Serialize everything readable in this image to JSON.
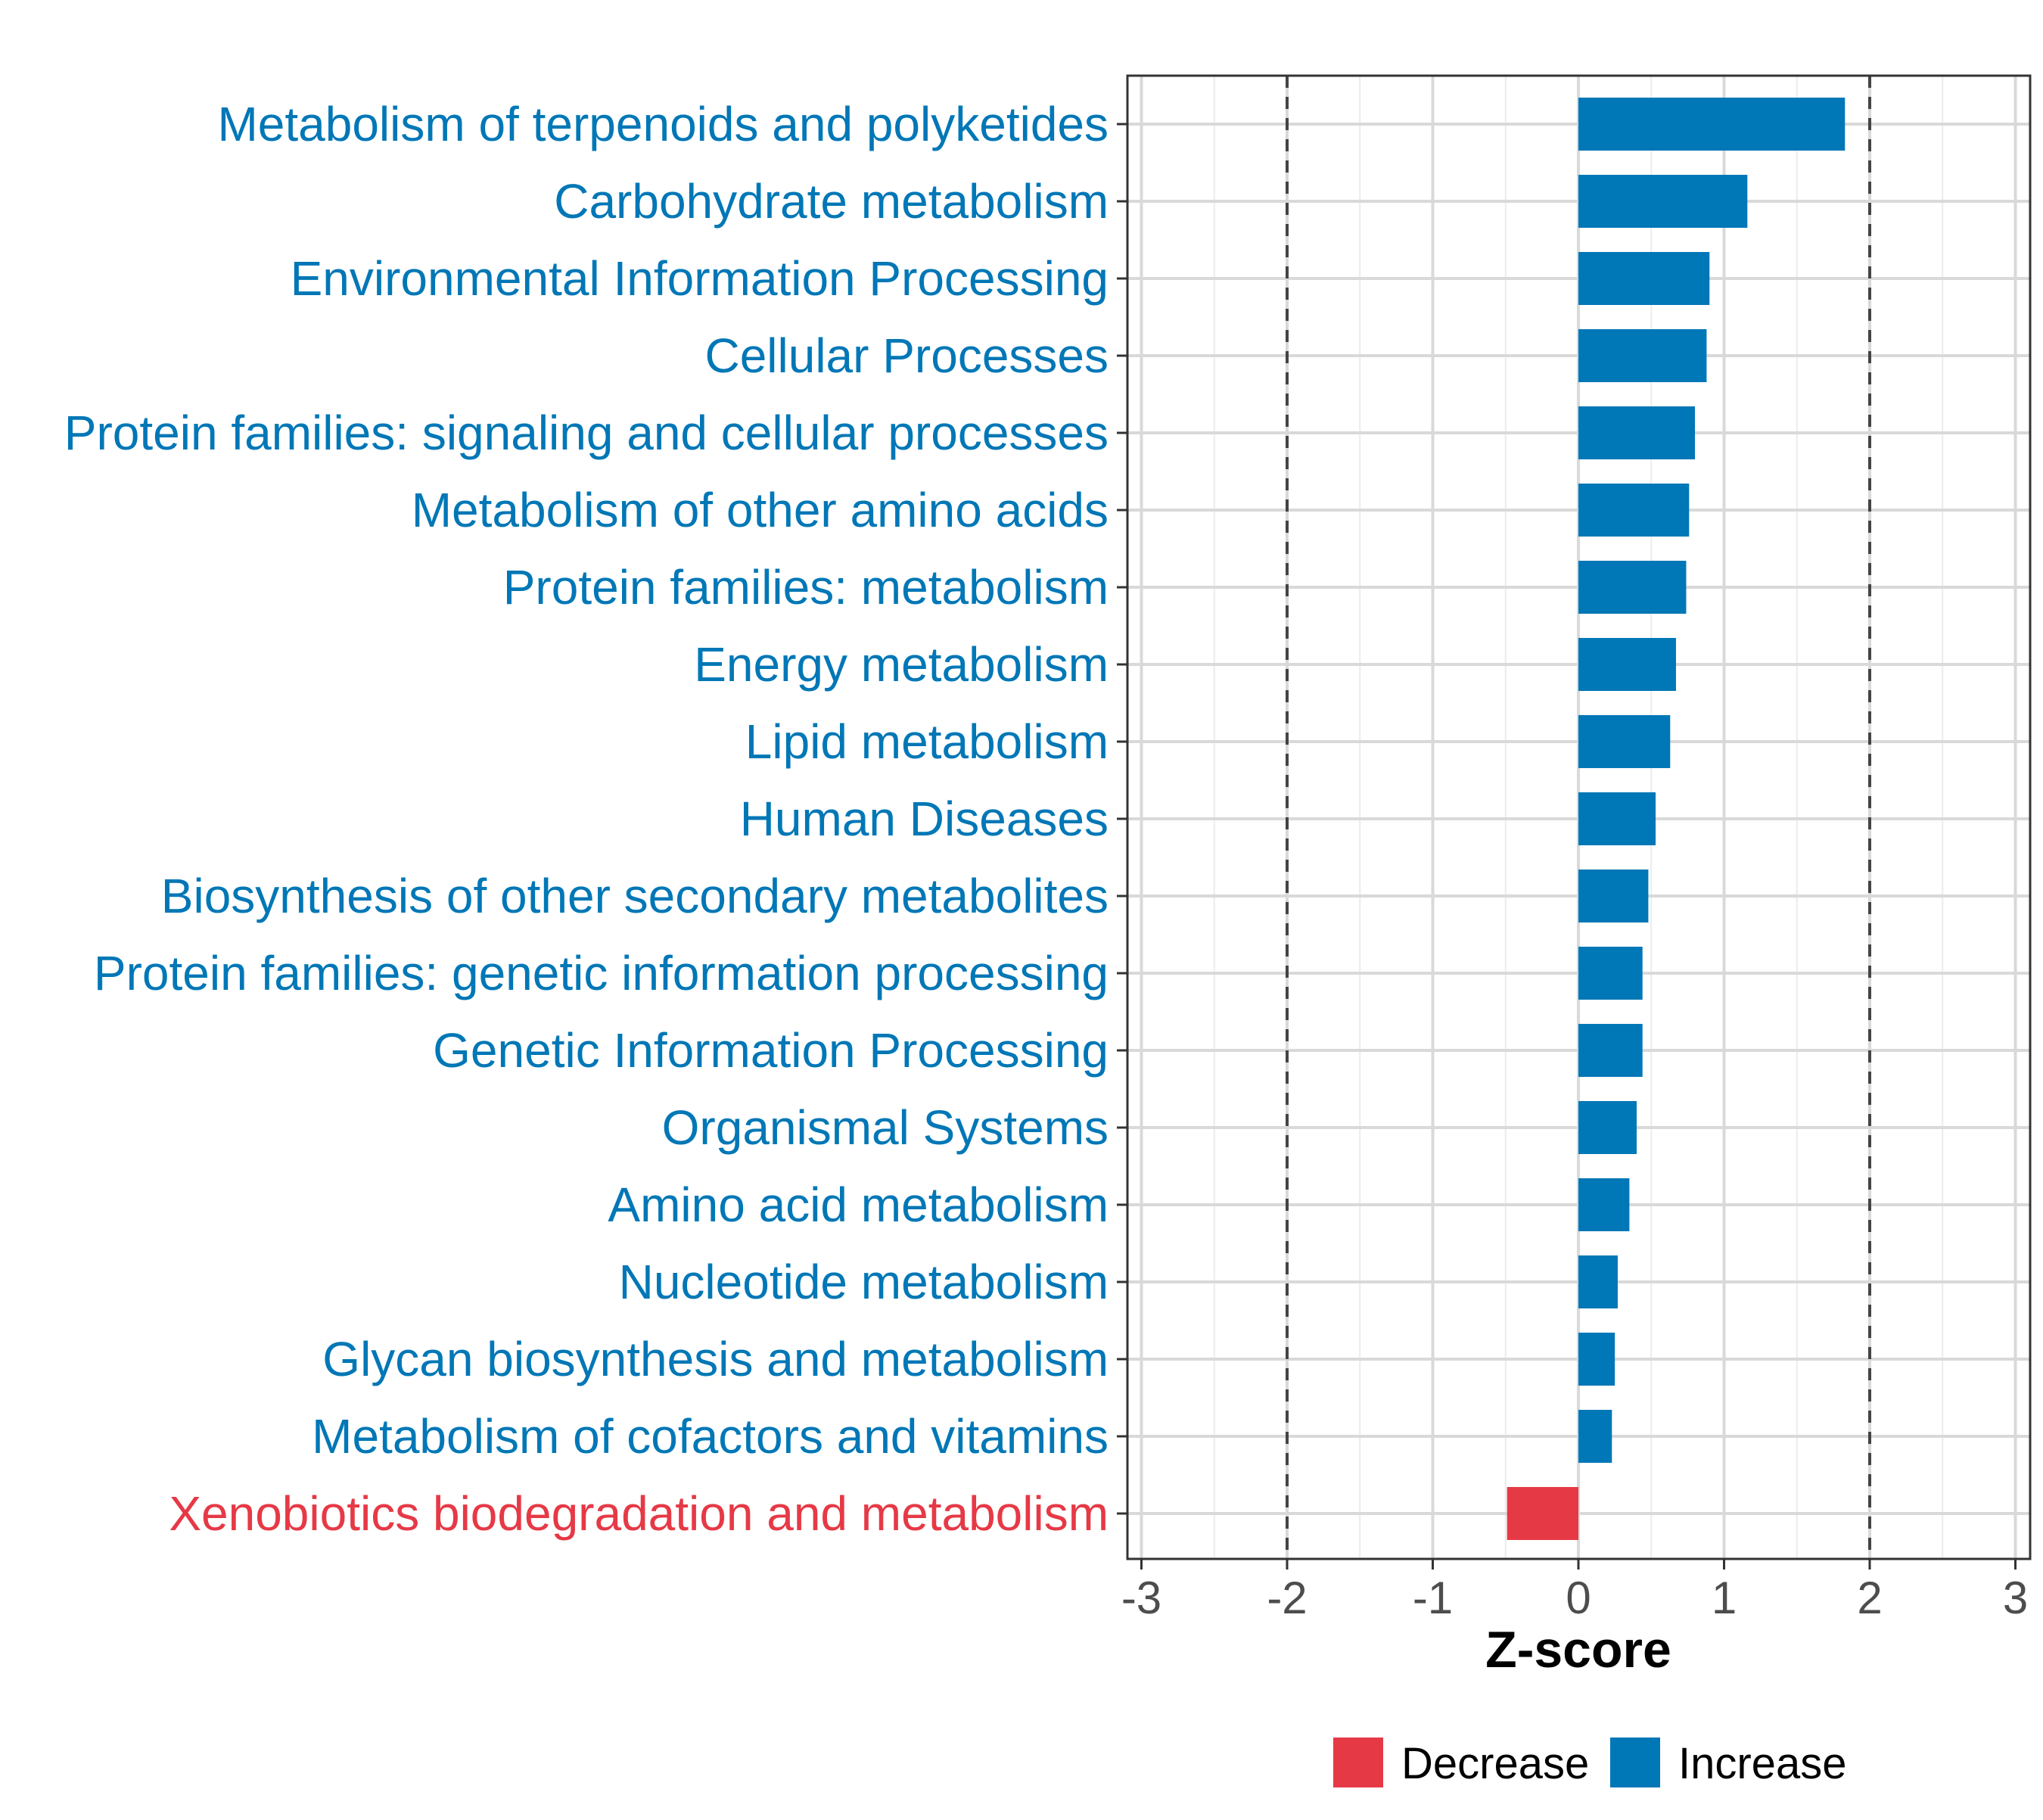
{
  "chart_data": {
    "type": "bar",
    "orientation": "horizontal",
    "title": "",
    "xlabel": "Z-score",
    "ylabel": "",
    "xlim": [
      -3,
      3
    ],
    "xticks": [
      "-3",
      "-2",
      "-1",
      "0",
      "1",
      "2",
      "3"
    ],
    "reference_lines": [
      -2,
      2
    ],
    "grid": true,
    "legend_position": "bottom",
    "legend": [
      {
        "label": "Decrease",
        "color": "#e63946"
      },
      {
        "label": "Increase",
        "color": "#0077b6"
      }
    ],
    "categories": [
      "Metabolism of terpenoids and polyketides",
      "Carbohydrate metabolism",
      "Environmental Information Processing",
      "Cellular Processes",
      "Protein families: signaling and cellular processes",
      "Metabolism of other amino acids",
      "Protein families: metabolism",
      "Energy metabolism",
      "Lipid metabolism",
      "Human Diseases",
      "Biosynthesis of other secondary metabolites",
      "Protein families: genetic information processing",
      "Genetic Information Processing",
      "Organismal Systems",
      "Amino acid metabolism",
      "Nucleotide metabolism",
      "Glycan biosynthesis and metabolism",
      "Metabolism of cofactors and vitamins",
      "Xenobiotics biodegradation and metabolism"
    ],
    "values": [
      1.83,
      1.16,
      0.9,
      0.88,
      0.8,
      0.76,
      0.74,
      0.67,
      0.63,
      0.53,
      0.48,
      0.44,
      0.44,
      0.4,
      0.35,
      0.27,
      0.25,
      0.23,
      -0.49
    ],
    "groups": [
      "Increase",
      "Increase",
      "Increase",
      "Increase",
      "Increase",
      "Increase",
      "Increase",
      "Increase",
      "Increase",
      "Increase",
      "Increase",
      "Increase",
      "Increase",
      "Increase",
      "Increase",
      "Increase",
      "Increase",
      "Increase",
      "Decrease"
    ]
  }
}
